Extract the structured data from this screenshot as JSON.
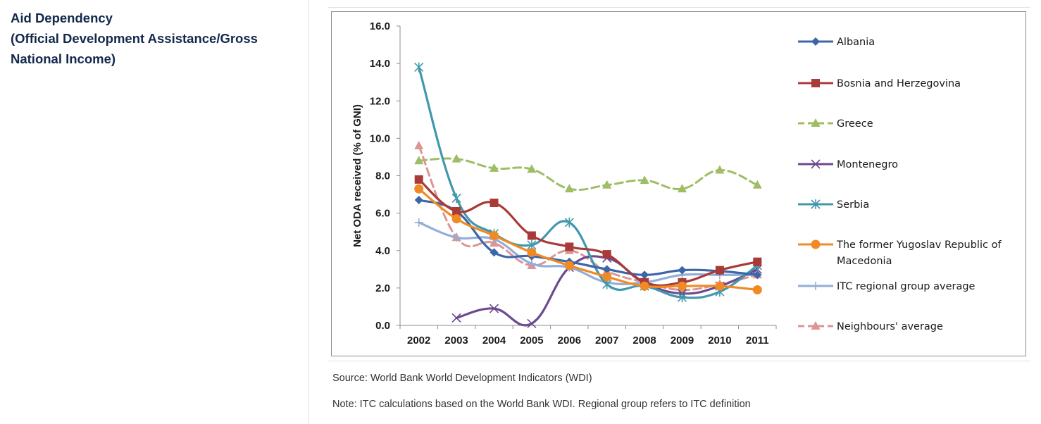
{
  "heading": {
    "line1": "Aid Dependency",
    "line2": "(Official Development Assistance/Gross",
    "line3": "National Income)"
  },
  "chart_data": {
    "type": "line",
    "title": "",
    "xlabel": "",
    "ylabel": "Net ODA received (% of GNI)",
    "x": [
      "2002",
      "2003",
      "2004",
      "2005",
      "2006",
      "2007",
      "2008",
      "2009",
      "2010",
      "2011"
    ],
    "ylim": [
      0,
      16
    ],
    "yticks": [
      "0.0",
      "2.0",
      "4.0",
      "6.0",
      "8.0",
      "10.0",
      "12.0",
      "14.0",
      "16.0"
    ],
    "grid": false,
    "legend_position": "right",
    "series": [
      {
        "name": "Albania",
        "color": "#3c66a8",
        "marker": "diamond",
        "dashed": false,
        "values": [
          6.7,
          6.1,
          3.9,
          3.7,
          3.4,
          3.0,
          2.7,
          2.95,
          2.9,
          2.7
        ]
      },
      {
        "name": "Bosnia and Herzegovina",
        "color": "#a83a37",
        "marker": "square",
        "dashed": false,
        "values": [
          7.8,
          6.1,
          6.55,
          4.8,
          4.2,
          3.8,
          2.3,
          2.3,
          2.95,
          3.4
        ]
      },
      {
        "name": "Greece",
        "color": "#9fbd65",
        "marker": "triangle",
        "dashed": true,
        "values": [
          8.8,
          8.9,
          8.4,
          8.35,
          7.3,
          7.5,
          7.75,
          7.3,
          8.3,
          7.5
        ]
      },
      {
        "name": "Montenegro",
        "color": "#6c4a8e",
        "marker": "x",
        "dashed": false,
        "values": [
          null,
          0.4,
          0.9,
          0.1,
          3.1,
          3.6,
          2.3,
          1.7,
          2.1,
          3.0
        ]
      },
      {
        "name": "Serbia",
        "color": "#4198ad",
        "marker": "asterisk",
        "dashed": false,
        "values": [
          13.8,
          6.8,
          4.9,
          4.3,
          5.5,
          2.2,
          2.1,
          1.5,
          1.8,
          3.2
        ]
      },
      {
        "name": "The former Yugoslav Republic of Macedonia",
        "color": "#f08a24",
        "marker": "circle",
        "dashed": false,
        "values": [
          7.3,
          5.7,
          4.8,
          3.9,
          3.2,
          2.6,
          2.1,
          2.1,
          2.1,
          1.9
        ]
      },
      {
        "name": "ITC regional group average",
        "color": "#93aed8",
        "marker": "plus",
        "dashed": false,
        "values": [
          5.5,
          4.7,
          4.6,
          3.3,
          3.1,
          2.3,
          2.3,
          2.7,
          2.7,
          2.7
        ]
      },
      {
        "name": "Neighbours' average",
        "color": "#dc9594",
        "marker": "triangle",
        "dashed": true,
        "values": [
          9.6,
          4.7,
          4.4,
          3.2,
          4.0,
          2.9,
          2.3,
          1.9,
          2.2,
          2.7
        ]
      }
    ],
    "legend_labels": [
      [
        "Albania"
      ],
      [
        "Bosnia and Herzegovina"
      ],
      [
        "Greece"
      ],
      [
        "Montenegro"
      ],
      [
        "Serbia"
      ],
      [
        "The former Yugoslav Republic of",
        "Macedonia"
      ],
      [
        "ITC regional group average"
      ],
      [
        "Neighbours' average"
      ]
    ]
  },
  "footnotes": {
    "source": "Source: World Bank World Development Indicators (WDI)",
    "note": "Note: ITC calculations based on the World Bank WDI. Regional group refers to ITC definition"
  }
}
